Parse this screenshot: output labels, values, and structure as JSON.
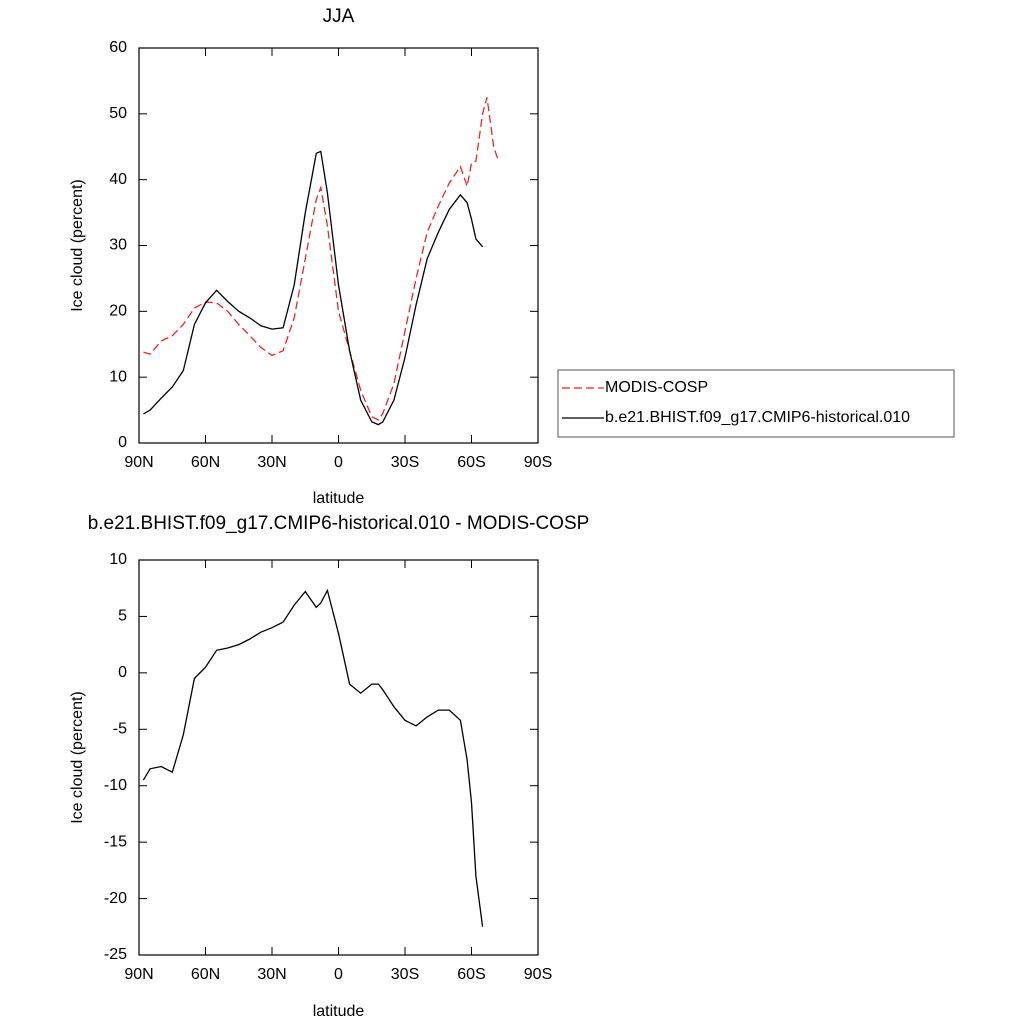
{
  "chart_data": [
    {
      "type": "line",
      "title": "JJA",
      "x_label": "latitude",
      "y_label": "Ice cloud (percent)",
      "x": [
        88,
        85,
        80,
        75,
        70,
        65,
        60,
        55,
        50,
        45,
        40,
        35,
        30,
        25,
        20,
        15,
        10,
        8,
        5,
        0,
        -5,
        -10,
        -15,
        -18,
        -20,
        -25,
        -30,
        -35,
        -40,
        -45,
        -50,
        -55,
        -58,
        -60,
        -62,
        -65,
        -67,
        -70,
        -72
      ],
      "series": [
        {
          "name": "MODIS-COSP",
          "color": "#e8272a",
          "dashed": true,
          "values": [
            13.8,
            13.5,
            15.5,
            16.3,
            18,
            20.5,
            21.4,
            21.3,
            20,
            18,
            16.3,
            14.5,
            13.3,
            14,
            19,
            28,
            37,
            38.8,
            33,
            20,
            14,
            8,
            4,
            3.5,
            4.5,
            9,
            17,
            25,
            32,
            36,
            39.5,
            42,
            39,
            42.5,
            42.8,
            50,
            52.5,
            45,
            43
          ]
        },
        {
          "name": "b.e21.BHIST.f09_g17.CMIP6-historical.010",
          "color": "#000000",
          "dashed": false,
          "values": [
            4.4,
            5,
            6.8,
            8.5,
            11,
            18,
            21.3,
            23.2,
            21.5,
            20,
            19,
            17.8,
            17.3,
            17.5,
            24,
            35,
            44,
            44.3,
            38,
            24,
            14,
            6.5,
            3.2,
            2.8,
            3.2,
            6.5,
            13,
            21,
            28,
            32,
            35.5,
            37.7,
            36.5,
            34,
            31,
            29.8,
            null,
            null,
            null
          ]
        }
      ],
      "xlim": [
        90,
        -90
      ],
      "xticks": [
        {
          "value": 90,
          "label": "90N"
        },
        {
          "value": 60,
          "label": "60N"
        },
        {
          "value": 30,
          "label": "30N"
        },
        0,
        {
          "value": -30,
          "label": "30S"
        },
        {
          "value": -60,
          "label": "60S"
        },
        {
          "value": -90,
          "label": "90S"
        }
      ],
      "ylim": [
        0,
        60
      ],
      "yticks": [
        0,
        10,
        20,
        30,
        40,
        50,
        60
      ],
      "legend": "right"
    },
    {
      "type": "line",
      "title": "b.e21.BHIST.f09_g17.CMIP6-historical.010 - MODIS-COSP",
      "x_label": "latitude",
      "y_label": "Ice cloud (percent)",
      "x": [
        88,
        85,
        80,
        75,
        70,
        65,
        60,
        55,
        50,
        45,
        40,
        35,
        30,
        25,
        20,
        15,
        10,
        8,
        5,
        0,
        -5,
        -10,
        -15,
        -18,
        -20,
        -25,
        -30,
        -35,
        -40,
        -45,
        -50,
        -55,
        -58,
        -60,
        -62,
        -65
      ],
      "color": "#000000",
      "values": [
        -9.5,
        -8.5,
        -8.3,
        -8.8,
        -5.5,
        -0.5,
        0.5,
        2,
        2.2,
        2.5,
        3,
        3.6,
        4,
        4.5,
        6,
        7.2,
        5.8,
        6.2,
        7.3,
        3.5,
        -1,
        -1.8,
        -1,
        -1,
        -1.5,
        -3,
        -4.2,
        -4.7,
        -3.9,
        -3.3,
        -3.3,
        -4.2,
        -7.7,
        -11.5,
        -18,
        -22.5
      ],
      "xlim": [
        90,
        -90
      ],
      "xticks": [
        {
          "value": 90,
          "label": "90N"
        },
        {
          "value": 60,
          "label": "60N"
        },
        {
          "value": 30,
          "label": "30N"
        },
        0,
        {
          "value": -30,
          "label": "30S"
        },
        {
          "value": -60,
          "label": "60S"
        },
        {
          "value": -90,
          "label": "90S"
        }
      ],
      "ylim": [
        -25,
        10
      ],
      "yticks": [
        -25,
        -20,
        -15,
        -10,
        -5,
        0,
        5,
        10
      ]
    }
  ]
}
